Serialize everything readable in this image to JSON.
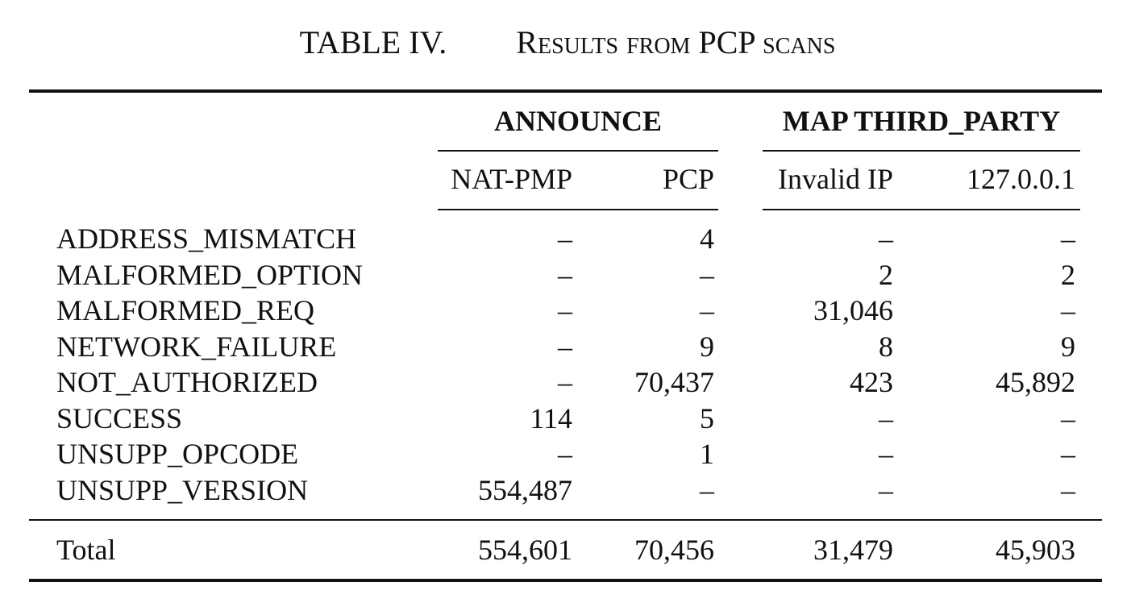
{
  "caption": {
    "number": "TABLE IV.",
    "title": "Results from PCP scans"
  },
  "table": {
    "groups": [
      {
        "label": "ANNOUNCE"
      },
      {
        "label": "MAP THIRD_PARTY"
      }
    ],
    "columns": [
      "NAT-PMP",
      "PCP",
      "Invalid IP",
      "127.0.0.1"
    ],
    "rows": [
      {
        "label": "ADDRESS_MISMATCH",
        "values": [
          "–",
          "4",
          "–",
          "–"
        ]
      },
      {
        "label": "MALFORMED_OPTION",
        "values": [
          "–",
          "–",
          "2",
          "2"
        ]
      },
      {
        "label": "MALFORMED_REQ",
        "values": [
          "–",
          "–",
          "31,046",
          "–"
        ]
      },
      {
        "label": "NETWORK_FAILURE",
        "values": [
          "–",
          "9",
          "8",
          "9"
        ]
      },
      {
        "label": "NOT_AUTHORIZED",
        "values": [
          "–",
          "70,437",
          "423",
          "45,892"
        ]
      },
      {
        "label": "SUCCESS",
        "values": [
          "114",
          "5",
          "–",
          "–"
        ]
      },
      {
        "label": "UNSUPP_OPCODE",
        "values": [
          "–",
          "1",
          "–",
          "–"
        ]
      },
      {
        "label": "UNSUPP_VERSION",
        "values": [
          "554,487",
          "–",
          "–",
          "–"
        ]
      }
    ],
    "total": {
      "label": "Total",
      "values": [
        "554,601",
        "70,456",
        "31,479",
        "45,903"
      ]
    }
  }
}
